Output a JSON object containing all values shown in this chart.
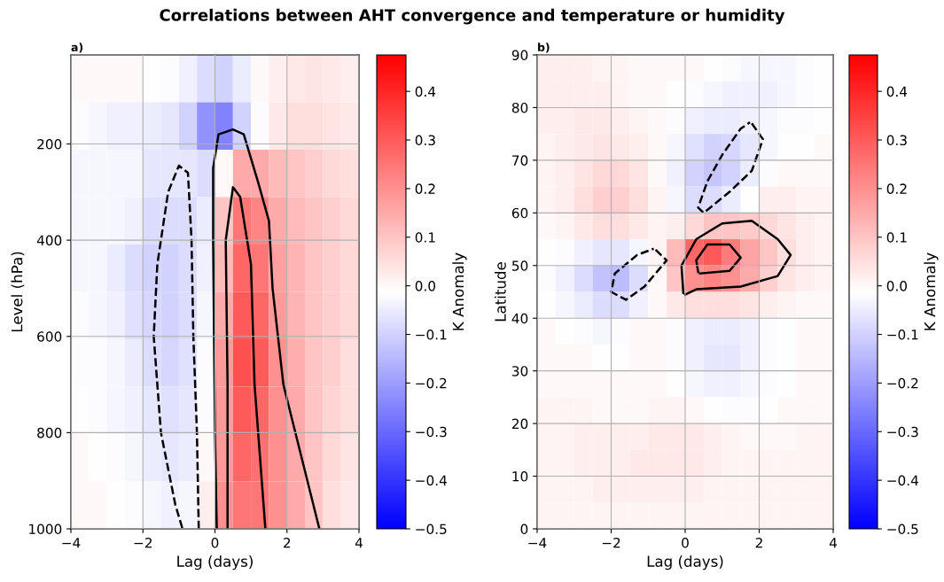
{
  "chart_data": [
    {
      "type": "heatmap",
      "title": "a)",
      "annotations": [
        "Correlations between AHT convergence and temperature or humidity"
      ],
      "xlabel": "Lag (days)",
      "ylabel": "Level (hPa)",
      "clabel": "K Anomaly",
      "xlim": [
        -4,
        4
      ],
      "xticks": [
        -4,
        -2,
        0,
        2,
        4
      ],
      "ylim": [
        1000,
        15
      ],
      "yticks": [
        200,
        400,
        600,
        800,
        1000
      ],
      "clim": [
        -0.5,
        0.475
      ],
      "cticks": [
        -0.5,
        -0.4,
        -0.3,
        -0.2,
        -0.1,
        {
          "value": 0,
          "label": "0.0"
        },
        0.1,
        0.2,
        0.3,
        0.4
      ],
      "grid": true,
      "x": [
        -3.75,
        -3.25,
        -2.75,
        -2.25,
        -1.75,
        -1.25,
        -0.75,
        -0.25,
        0.25,
        0.75,
        1.25,
        1.75,
        2.25,
        2.75,
        3.25,
        3.75
      ],
      "y": [
        64.25,
        162.75,
        261.25,
        359.75,
        458.25,
        556.75,
        655.25,
        753.75,
        852.25,
        950.75
      ],
      "cells": [
        [
          0,
          0,
          0,
          0,
          -0.01,
          -0.02,
          -0.04,
          -0.08,
          -0.1,
          -0.05,
          0,
          0.02,
          0.03,
          0.04,
          0.03,
          0.02
        ],
        [
          -0.02,
          -0.03,
          -0.04,
          -0.04,
          -0.05,
          -0.06,
          -0.1,
          -0.22,
          -0.25,
          -0.1,
          -0.02,
          0.03,
          0.05,
          0.05,
          0.04,
          0.03
        ],
        [
          -0.03,
          -0.03,
          -0.03,
          -0.03,
          -0.06,
          -0.06,
          -0.06,
          -0.08,
          0.0,
          0.15,
          0.15,
          0.12,
          0.1,
          0.08,
          0.06,
          0.05
        ],
        [
          -0.03,
          -0.03,
          -0.03,
          -0.04,
          -0.08,
          -0.08,
          -0.08,
          -0.05,
          0.1,
          0.25,
          0.22,
          0.15,
          0.12,
          0.1,
          0.08,
          0.06
        ],
        [
          -0.03,
          -0.03,
          -0.05,
          -0.08,
          -0.1,
          -0.1,
          -0.08,
          -0.04,
          0.12,
          0.28,
          0.25,
          0.17,
          0.13,
          0.1,
          0.08,
          0.06
        ],
        [
          -0.02,
          -0.03,
          -0.04,
          -0.07,
          -0.09,
          -0.1,
          -0.08,
          -0.03,
          0.15,
          0.3,
          0.28,
          0.18,
          0.13,
          0.1,
          0.08,
          0.06
        ],
        [
          -0.02,
          -0.02,
          -0.03,
          -0.05,
          -0.08,
          -0.09,
          -0.07,
          -0.02,
          0.18,
          0.32,
          0.3,
          0.2,
          0.14,
          0.1,
          0.08,
          0.05
        ],
        [
          -0.01,
          -0.02,
          -0.03,
          -0.04,
          -0.06,
          -0.07,
          -0.06,
          -0.02,
          0.18,
          0.3,
          0.28,
          0.2,
          0.15,
          0.1,
          0.07,
          0.05
        ],
        [
          0,
          -0.01,
          -0.02,
          -0.03,
          -0.05,
          -0.06,
          -0.05,
          0,
          0.18,
          0.28,
          0.26,
          0.2,
          0.15,
          0.1,
          0.06,
          0.04
        ],
        [
          0,
          0,
          -0.01,
          -0.02,
          -0.03,
          -0.04,
          -0.03,
          0.02,
          0.2,
          0.25,
          0.25,
          0.2,
          0.15,
          0.1,
          0.05,
          0.03
        ]
      ],
      "series": [
        {
          "type": "line",
          "color": "#000000",
          "line_style": "dashed",
          "x": [
            -0.45,
            -0.5,
            -0.6,
            -0.65,
            -0.75,
            -1,
            -1.3,
            -1.6,
            -1.7,
            -1.5,
            -1.1,
            -0.9
          ],
          "values": [
            1000,
            800,
            600,
            400,
            260,
            245,
            300,
            450,
            600,
            800,
            950,
            1000
          ]
        },
        {
          "type": "line",
          "color": "#000000",
          "line_style": "solid",
          "x": [
            0.05,
            0.0,
            -0.05,
            -0.05,
            0.1,
            0.5,
            0.8,
            1.2,
            1.5,
            1.6,
            1.9,
            2.4,
            2.9
          ],
          "values": [
            1000,
            800,
            400,
            250,
            180,
            170,
            180,
            280,
            360,
            500,
            700,
            850,
            1000
          ]
        },
        {
          "type": "line",
          "color": "#000000",
          "line_style": "solid",
          "x": [
            0.35,
            0.35,
            0.3,
            0.5,
            0.7,
            1.0,
            1.1,
            1.3,
            1.4
          ],
          "values": [
            1000,
            700,
            400,
            290,
            310,
            450,
            700,
            900,
            1000
          ]
        }
      ]
    },
    {
      "type": "heatmap",
      "title": "b)",
      "xlabel": "Lag (days)",
      "ylabel": "Latitude",
      "clabel": "K Anomaly",
      "xlim": [
        -4,
        4
      ],
      "xticks": [
        -4,
        -2,
        0,
        2,
        4
      ],
      "ylim": [
        0,
        90
      ],
      "yticks": [
        0,
        10,
        20,
        30,
        40,
        50,
        60,
        70,
        80,
        90
      ],
      "clim": [
        -0.5,
        0.475
      ],
      "cticks": [
        -0.5,
        -0.4,
        -0.3,
        -0.2,
        -0.1,
        {
          "value": 0,
          "label": "0.0"
        },
        0.1,
        0.2,
        0.3,
        0.4
      ],
      "grid": true,
      "x": [
        -3.75,
        -3.25,
        -2.75,
        -2.25,
        -1.75,
        -1.25,
        -0.75,
        -0.25,
        0.25,
        0.75,
        1.25,
        1.75,
        2.25,
        2.75,
        3.25,
        3.75
      ],
      "y": [
        87.5,
        82.5,
        77.5,
        72.5,
        67.5,
        62.5,
        57.5,
        52.5,
        47.5,
        42.5,
        37.5,
        32.5,
        27.5,
        22.5,
        17.5,
        12.5,
        7.5,
        2.5
      ],
      "cells": [
        [
          0.02,
          0.02,
          0.02,
          0.01,
          0.01,
          0,
          0,
          0,
          0,
          -0.01,
          -0.02,
          -0.03,
          -0.03,
          -0.03,
          -0.02,
          -0.01
        ],
        [
          0.02,
          0.02,
          0.02,
          0.02,
          0.01,
          0,
          0,
          -0.01,
          -0.02,
          -0.03,
          -0.04,
          -0.04,
          -0.04,
          -0.03,
          -0.02,
          -0.01
        ],
        [
          0.02,
          0.02,
          0.03,
          0.03,
          0.02,
          0.01,
          0,
          -0.02,
          -0.04,
          -0.05,
          -0.05,
          -0.04,
          -0.03,
          -0.02,
          -0.02,
          -0.01
        ],
        [
          0.01,
          0.02,
          0.03,
          0.04,
          0.03,
          0.02,
          0,
          -0.03,
          -0.07,
          -0.1,
          -0.09,
          -0.06,
          -0.03,
          -0.01,
          -0.01,
          0
        ],
        [
          0.01,
          0.02,
          0.04,
          0.06,
          0.06,
          0.04,
          0,
          -0.04,
          -0.1,
          -0.12,
          -0.1,
          -0.05,
          -0.02,
          0,
          0,
          0
        ],
        [
          0.01,
          0.02,
          0.05,
          0.08,
          0.08,
          0.05,
          0.01,
          -0.03,
          -0.08,
          -0.08,
          -0.05,
          -0.01,
          0.02,
          0.02,
          0.01,
          0.01
        ],
        [
          0,
          0.01,
          0.03,
          0.05,
          0.05,
          0.03,
          0.01,
          0.02,
          0.06,
          0.1,
          0.1,
          0.09,
          0.06,
          0.04,
          0.02,
          0.01
        ],
        [
          -0.01,
          -0.02,
          -0.04,
          -0.06,
          -0.06,
          -0.03,
          0.01,
          0.12,
          0.28,
          0.3,
          0.24,
          0.16,
          0.1,
          0.05,
          0.02,
          0.01
        ],
        [
          -0.02,
          -0.04,
          -0.08,
          -0.13,
          -0.14,
          -0.08,
          0.0,
          0.1,
          0.2,
          0.22,
          0.2,
          0.15,
          0.08,
          0.04,
          0.02,
          0.01
        ],
        [
          -0.01,
          -0.03,
          -0.05,
          -0.08,
          -0.08,
          -0.04,
          0.0,
          0.03,
          0.05,
          0.05,
          0.05,
          0.04,
          0.02,
          0.01,
          0,
          0
        ],
        [
          0,
          -0.01,
          -0.02,
          -0.03,
          -0.02,
          0,
          0,
          -0.02,
          -0.04,
          -0.05,
          -0.05,
          -0.04,
          -0.02,
          -0.01,
          0,
          0
        ],
        [
          0,
          0,
          0,
          -0.01,
          -0.01,
          0,
          0,
          -0.02,
          -0.04,
          -0.06,
          -0.06,
          -0.04,
          -0.02,
          -0.01,
          0,
          0
        ],
        [
          0,
          0,
          0,
          0,
          0,
          0,
          0,
          -0.01,
          -0.03,
          -0.04,
          -0.04,
          -0.03,
          -0.02,
          -0.01,
          0,
          0
        ],
        [
          0.01,
          0.01,
          0.01,
          0,
          0,
          0,
          0.01,
          0.01,
          0,
          -0.01,
          -0.02,
          -0.02,
          -0.01,
          0,
          0,
          0
        ],
        [
          0.01,
          0.01,
          0.02,
          0.02,
          0.02,
          0.02,
          0.03,
          0.03,
          0.03,
          0.02,
          0.01,
          0,
          0,
          0,
          0.01,
          0.01
        ],
        [
          0.01,
          0.01,
          0.02,
          0.02,
          0.02,
          0.03,
          0.03,
          0.03,
          0.03,
          0.02,
          0.01,
          0.01,
          0.01,
          0.01,
          0.01,
          0.01
        ],
        [
          0.01,
          0.01,
          0.01,
          0.02,
          0.02,
          0.02,
          0.02,
          0.02,
          0.02,
          0.01,
          0.01,
          0.01,
          0.01,
          0.01,
          0.01,
          0.01
        ],
        [
          0.01,
          0.01,
          0.01,
          0.01,
          0.01,
          0.01,
          0.01,
          0.01,
          0.01,
          0.01,
          0.01,
          0.01,
          0.01,
          0.01,
          0.01,
          0.01
        ]
      ],
      "series": [
        {
          "type": "line",
          "color": "#000000",
          "line_style": "dashed",
          "x": [
            1.8,
            2.1,
            1.8,
            1.2,
            0.5,
            0.35,
            0.6,
            1.0,
            1.5,
            1.75
          ],
          "values": [
            77,
            74,
            68,
            64,
            60,
            61,
            66,
            71,
            76,
            77.2
          ]
        },
        {
          "type": "line",
          "color": "#000000",
          "line_style": "dashed",
          "x": [
            -0.8,
            -0.5,
            -1.1,
            -1.6,
            -2.0,
            -1.9,
            -1.3,
            -0.85
          ],
          "values": [
            53,
            51,
            46,
            43.5,
            45,
            48.5,
            52,
            53.2
          ]
        },
        {
          "type": "line",
          "color": "#000000",
          "line_style": "solid",
          "x": [
            0,
            0.3,
            1.5,
            2.5,
            2.85,
            2.5,
            1.8,
            1.0,
            0.3,
            -0.1,
            -0.05
          ],
          "values": [
            44.5,
            45.5,
            46,
            48,
            52,
            55,
            58.5,
            58,
            55,
            50,
            44.8
          ]
        },
        {
          "type": "line",
          "color": "#000000",
          "line_style": "solid",
          "x": [
            0.4,
            1.2,
            1.5,
            1.2,
            0.6,
            0.3,
            0.35
          ],
          "values": [
            48.5,
            49,
            51.5,
            54,
            54,
            51,
            48.8
          ]
        }
      ]
    }
  ]
}
